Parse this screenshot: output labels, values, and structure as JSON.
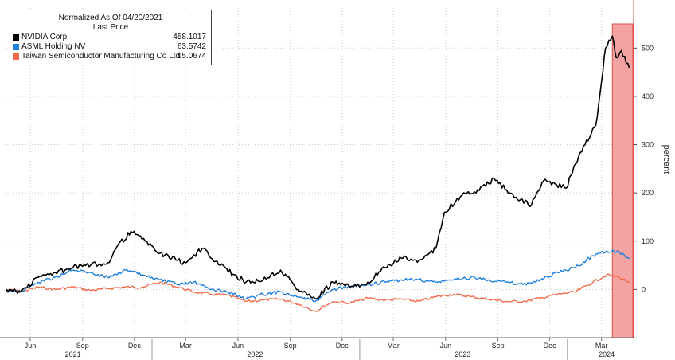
{
  "chart_data": {
    "type": "line",
    "title": "Normalized As Of 04/20/2021",
    "subtitle": "Last Price",
    "ylabel": "percent",
    "ylim": [
      -100,
      550
    ],
    "yticks": [
      0,
      100,
      200,
      300,
      400,
      500
    ],
    "xlim": [
      "2021-04-20",
      "2024-04-25"
    ],
    "month_ticks": [
      {
        "date": "2021-06-01",
        "label": "Jun"
      },
      {
        "date": "2021-09-01",
        "label": "Sep"
      },
      {
        "date": "2021-12-01",
        "label": "Dec"
      },
      {
        "date": "2022-03-01",
        "label": "Mar"
      },
      {
        "date": "2022-06-01",
        "label": "Jun"
      },
      {
        "date": "2022-09-01",
        "label": "Sep"
      },
      {
        "date": "2022-12-01",
        "label": "Dec"
      },
      {
        "date": "2023-03-01",
        "label": "Mar"
      },
      {
        "date": "2023-06-01",
        "label": "Jun"
      },
      {
        "date": "2023-09-01",
        "label": "Sep"
      },
      {
        "date": "2023-12-01",
        "label": "Dec"
      },
      {
        "date": "2024-03-01",
        "label": "Mar"
      }
    ],
    "year_labels": [
      {
        "date": "2021-08-15",
        "label": "2021"
      },
      {
        "date": "2022-07-01",
        "label": "2022"
      },
      {
        "date": "2023-07-01",
        "label": "2023"
      },
      {
        "date": "2024-03-10",
        "label": "2024"
      }
    ],
    "year_dividers": [
      "2022-01-01",
      "2023-01-01",
      "2024-01-01"
    ],
    "highlight_range": [
      "2024-03-20",
      "2024-04-25"
    ],
    "grid": true,
    "legend_position": "top-left",
    "series": [
      {
        "name": "NVIDIA Corp",
        "last_value": "458.1017",
        "color": "#000000",
        "points": [
          [
            "2021-04-20",
            0
          ],
          [
            "2021-05-15",
            -5
          ],
          [
            "2021-06-15",
            25
          ],
          [
            "2021-07-15",
            35
          ],
          [
            "2021-08-15",
            45
          ],
          [
            "2021-09-15",
            50
          ],
          [
            "2021-10-15",
            55
          ],
          [
            "2021-11-01",
            90
          ],
          [
            "2021-11-25",
            120
          ],
          [
            "2021-12-20",
            100
          ],
          [
            "2022-01-15",
            75
          ],
          [
            "2022-02-15",
            60
          ],
          [
            "2022-03-01",
            55
          ],
          [
            "2022-03-30",
            85
          ],
          [
            "2022-05-01",
            50
          ],
          [
            "2022-06-15",
            15
          ],
          [
            "2022-07-15",
            20
          ],
          [
            "2022-08-15",
            40
          ],
          [
            "2022-09-15",
            0
          ],
          [
            "2022-10-15",
            -20
          ],
          [
            "2022-11-15",
            15
          ],
          [
            "2022-12-15",
            5
          ],
          [
            "2023-01-15",
            15
          ],
          [
            "2023-02-15",
            45
          ],
          [
            "2023-03-15",
            65
          ],
          [
            "2023-04-15",
            60
          ],
          [
            "2023-05-15",
            85
          ],
          [
            "2023-05-30",
            160
          ],
          [
            "2023-06-30",
            195
          ],
          [
            "2023-07-30",
            205
          ],
          [
            "2023-08-25",
            230
          ],
          [
            "2023-09-30",
            190
          ],
          [
            "2023-10-30",
            175
          ],
          [
            "2023-11-20",
            225
          ],
          [
            "2023-12-30",
            210
          ],
          [
            "2024-01-15",
            260
          ],
          [
            "2024-02-01",
            300
          ],
          [
            "2024-02-20",
            340
          ],
          [
            "2024-03-01",
            430
          ],
          [
            "2024-03-08",
            500
          ],
          [
            "2024-03-20",
            525
          ],
          [
            "2024-03-27",
            480
          ],
          [
            "2024-04-05",
            495
          ],
          [
            "2024-04-19",
            458
          ]
        ]
      },
      {
        "name": "ASML Holding NV",
        "last_value": "63.5742",
        "color": "#1f7fe0",
        "points": [
          [
            "2021-04-20",
            0
          ],
          [
            "2021-05-15",
            -5
          ],
          [
            "2021-06-15",
            15
          ],
          [
            "2021-07-15",
            25
          ],
          [
            "2021-08-15",
            40
          ],
          [
            "2021-09-15",
            35
          ],
          [
            "2021-10-15",
            25
          ],
          [
            "2021-11-15",
            40
          ],
          [
            "2021-12-15",
            30
          ],
          [
            "2022-01-15",
            20
          ],
          [
            "2022-02-15",
            10
          ],
          [
            "2022-03-15",
            15
          ],
          [
            "2022-04-15",
            0
          ],
          [
            "2022-05-15",
            -5
          ],
          [
            "2022-06-15",
            -20
          ],
          [
            "2022-07-15",
            -10
          ],
          [
            "2022-08-15",
            -5
          ],
          [
            "2022-09-15",
            -15
          ],
          [
            "2022-10-15",
            -25
          ],
          [
            "2022-11-15",
            0
          ],
          [
            "2022-12-15",
            5
          ],
          [
            "2023-01-15",
            10
          ],
          [
            "2023-02-15",
            15
          ],
          [
            "2023-03-15",
            20
          ],
          [
            "2023-04-15",
            20
          ],
          [
            "2023-05-15",
            15
          ],
          [
            "2023-06-15",
            20
          ],
          [
            "2023-07-15",
            25
          ],
          [
            "2023-08-15",
            20
          ],
          [
            "2023-09-15",
            15
          ],
          [
            "2023-10-15",
            10
          ],
          [
            "2023-11-15",
            20
          ],
          [
            "2023-12-15",
            35
          ],
          [
            "2024-01-15",
            45
          ],
          [
            "2024-02-15",
            70
          ],
          [
            "2024-03-10",
            80
          ],
          [
            "2024-04-01",
            78
          ],
          [
            "2024-04-19",
            63.5742
          ]
        ]
      },
      {
        "name": "Taiwan Semiconductor Manufacturing Co Ltd",
        "last_value": "15.0674",
        "color": "#f26b4a",
        "points": [
          [
            "2021-04-20",
            0
          ],
          [
            "2021-05-15",
            -5
          ],
          [
            "2021-06-15",
            5
          ],
          [
            "2021-07-15",
            0
          ],
          [
            "2021-08-15",
            5
          ],
          [
            "2021-09-15",
            -2
          ],
          [
            "2021-10-15",
            2
          ],
          [
            "2021-11-15",
            5
          ],
          [
            "2021-12-15",
            5
          ],
          [
            "2022-01-15",
            15
          ],
          [
            "2022-02-15",
            5
          ],
          [
            "2022-03-15",
            -5
          ],
          [
            "2022-04-15",
            -10
          ],
          [
            "2022-05-15",
            -12
          ],
          [
            "2022-06-15",
            -25
          ],
          [
            "2022-07-15",
            -22
          ],
          [
            "2022-08-15",
            -20
          ],
          [
            "2022-09-15",
            -30
          ],
          [
            "2022-10-15",
            -45
          ],
          [
            "2022-11-15",
            -25
          ],
          [
            "2022-12-15",
            -28
          ],
          [
            "2023-01-15",
            -18
          ],
          [
            "2023-02-15",
            -22
          ],
          [
            "2023-03-15",
            -20
          ],
          [
            "2023-04-15",
            -25
          ],
          [
            "2023-05-15",
            -15
          ],
          [
            "2023-06-15",
            -10
          ],
          [
            "2023-07-15",
            -15
          ],
          [
            "2023-08-15",
            -20
          ],
          [
            "2023-09-15",
            -25
          ],
          [
            "2023-10-15",
            -25
          ],
          [
            "2023-11-15",
            -18
          ],
          [
            "2023-12-15",
            -10
          ],
          [
            "2024-01-15",
            -5
          ],
          [
            "2024-02-15",
            15
          ],
          [
            "2024-03-10",
            30
          ],
          [
            "2024-04-01",
            25
          ],
          [
            "2024-04-19",
            15.0674
          ]
        ]
      }
    ]
  }
}
